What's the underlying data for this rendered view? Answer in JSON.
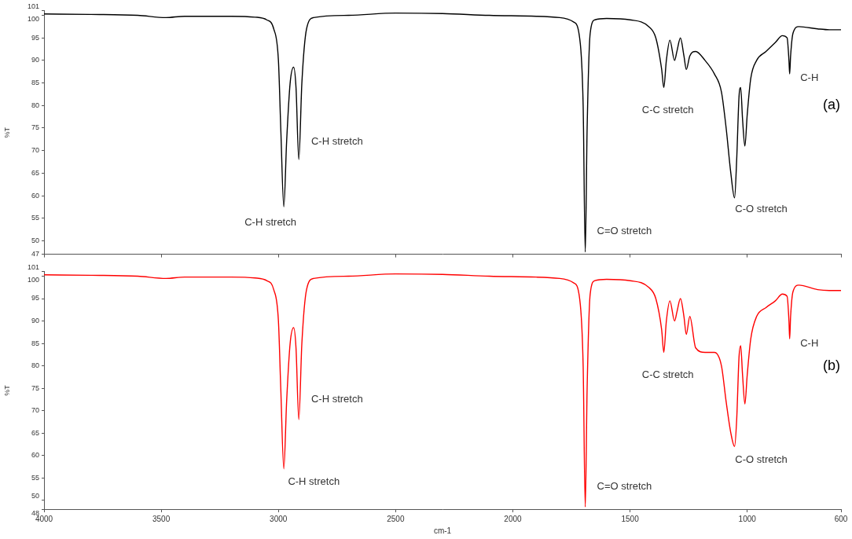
{
  "chart_data": [
    {
      "type": "line",
      "color": "#000000",
      "grid": false,
      "tick_labels": "y",
      "y_label": "%T",
      "xlim": [
        4000,
        600
      ],
      "xticks": [
        4000,
        3500,
        3000,
        2500,
        2000,
        1500,
        1000,
        600
      ],
      "ylim": [
        47,
        101
      ],
      "yticks": [
        47,
        50,
        55,
        60,
        65,
        70,
        75,
        80,
        85,
        90,
        95,
        100,
        101
      ],
      "x": [
        4000,
        3800,
        3600,
        3480,
        3400,
        3200,
        3100,
        3050,
        3020,
        3000,
        2990,
        2977,
        2965,
        2950,
        2935,
        2925,
        2913,
        2900,
        2880,
        2850,
        2700,
        2500,
        2300,
        2100,
        1900,
        1800,
        1740,
        1715,
        1700,
        1691,
        1683,
        1670,
        1650,
        1600,
        1500,
        1420,
        1390,
        1365,
        1356,
        1345,
        1330,
        1310,
        1300,
        1285,
        1270,
        1260,
        1245,
        1220,
        1180,
        1140,
        1110,
        1090,
        1070,
        1054,
        1045,
        1035,
        1028,
        1020,
        1010,
        1000,
        985,
        960,
        920,
        880,
        850,
        830,
        822,
        819,
        815,
        805,
        780,
        700,
        650,
        600
      ],
      "values": [
        100.3,
        100.2,
        100,
        99.5,
        99.8,
        99.8,
        99.6,
        99,
        97,
        90,
        75,
        57.5,
        72,
        85,
        88.5,
        84,
        68,
        85,
        97,
        99.5,
        100,
        100.5,
        100.4,
        100,
        99.8,
        99.5,
        98.5,
        95,
        80,
        47.5,
        75,
        96,
        99,
        99.3,
        99,
        97.5,
        95,
        88,
        84,
        90,
        94.5,
        90,
        92,
        95,
        91,
        88,
        91,
        92,
        90,
        87,
        83,
        75,
        65,
        59.5,
        68,
        82,
        84,
        77,
        71,
        78,
        86,
        90,
        92,
        94,
        95.5,
        95,
        90,
        87,
        91,
        96,
        97.5,
        97,
        96.8,
        96.8
      ],
      "annotations": [
        {
          "text": "C-H stretch",
          "x": 2750,
          "y": 72
        },
        {
          "text": "C-H stretch",
          "x": 3034,
          "y": 54
        },
        {
          "text": "C=O stretch",
          "x": 1524,
          "y": 52
        },
        {
          "text": "C-C stretch",
          "x": 1339,
          "y": 79
        },
        {
          "text": "C-O stretch",
          "x": 940,
          "y": 57
        },
        {
          "text": "C-H",
          "x": 735,
          "y": 86
        }
      ],
      "panel_label": {
        "text": "(a)",
        "x": 640,
        "y": 80
      }
    },
    {
      "type": "line",
      "color": "#ff0000",
      "grid": false,
      "x_label": "cm-1",
      "y_label": "%T",
      "xlim": [
        4000,
        600
      ],
      "xticks": [
        4000,
        3500,
        3000,
        2500,
        2000,
        1500,
        1000,
        600
      ],
      "ylim": [
        48,
        101
      ],
      "yticks": [
        48,
        50,
        55,
        60,
        65,
        70,
        75,
        80,
        85,
        90,
        95,
        100,
        101
      ],
      "x": [
        4000,
        3800,
        3600,
        3480,
        3400,
        3200,
        3100,
        3050,
        3020,
        3000,
        2990,
        2977,
        2965,
        2950,
        2935,
        2925,
        2913,
        2900,
        2880,
        2850,
        2700,
        2500,
        2300,
        2100,
        1900,
        1800,
        1740,
        1715,
        1700,
        1691,
        1683,
        1670,
        1650,
        1600,
        1500,
        1420,
        1390,
        1365,
        1356,
        1345,
        1330,
        1310,
        1300,
        1285,
        1270,
        1260,
        1245,
        1220,
        1180,
        1140,
        1110,
        1090,
        1070,
        1054,
        1045,
        1035,
        1028,
        1020,
        1010,
        1000,
        985,
        960,
        920,
        880,
        850,
        830,
        822,
        819,
        815,
        805,
        780,
        700,
        650,
        600
      ],
      "values": [
        100.3,
        100.2,
        100,
        99.5,
        99.8,
        99.8,
        99.6,
        99,
        97,
        90,
        75,
        57,
        72,
        85,
        88.5,
        84,
        68,
        85,
        97,
        99.5,
        100,
        100.5,
        100.4,
        100,
        99.8,
        99.5,
        98.5,
        95,
        80,
        48.5,
        75,
        96,
        99,
        99.3,
        99,
        97.5,
        95,
        88,
        83,
        90,
        94.5,
        90,
        92,
        95,
        91,
        87,
        91,
        84,
        83,
        83,
        80,
        72,
        65,
        62,
        68,
        82,
        84.5,
        78,
        71.5,
        78,
        86,
        91,
        93,
        94.5,
        96,
        95.5,
        90,
        86,
        91,
        96.5,
        98,
        97,
        96.8,
        96.8
      ],
      "annotations": [
        {
          "text": "C-H stretch",
          "x": 2750,
          "y": 72.5
        },
        {
          "text": "C-H stretch",
          "x": 2849,
          "y": 54
        },
        {
          "text": "C=O stretch",
          "x": 1524,
          "y": 53
        },
        {
          "text": "C-C stretch",
          "x": 1339,
          "y": 78
        },
        {
          "text": "C-O stretch",
          "x": 940,
          "y": 59
        },
        {
          "text": "C-H",
          "x": 735,
          "y": 85
        }
      ],
      "panel_label": {
        "text": "(b)",
        "x": 640,
        "y": 80
      }
    }
  ]
}
